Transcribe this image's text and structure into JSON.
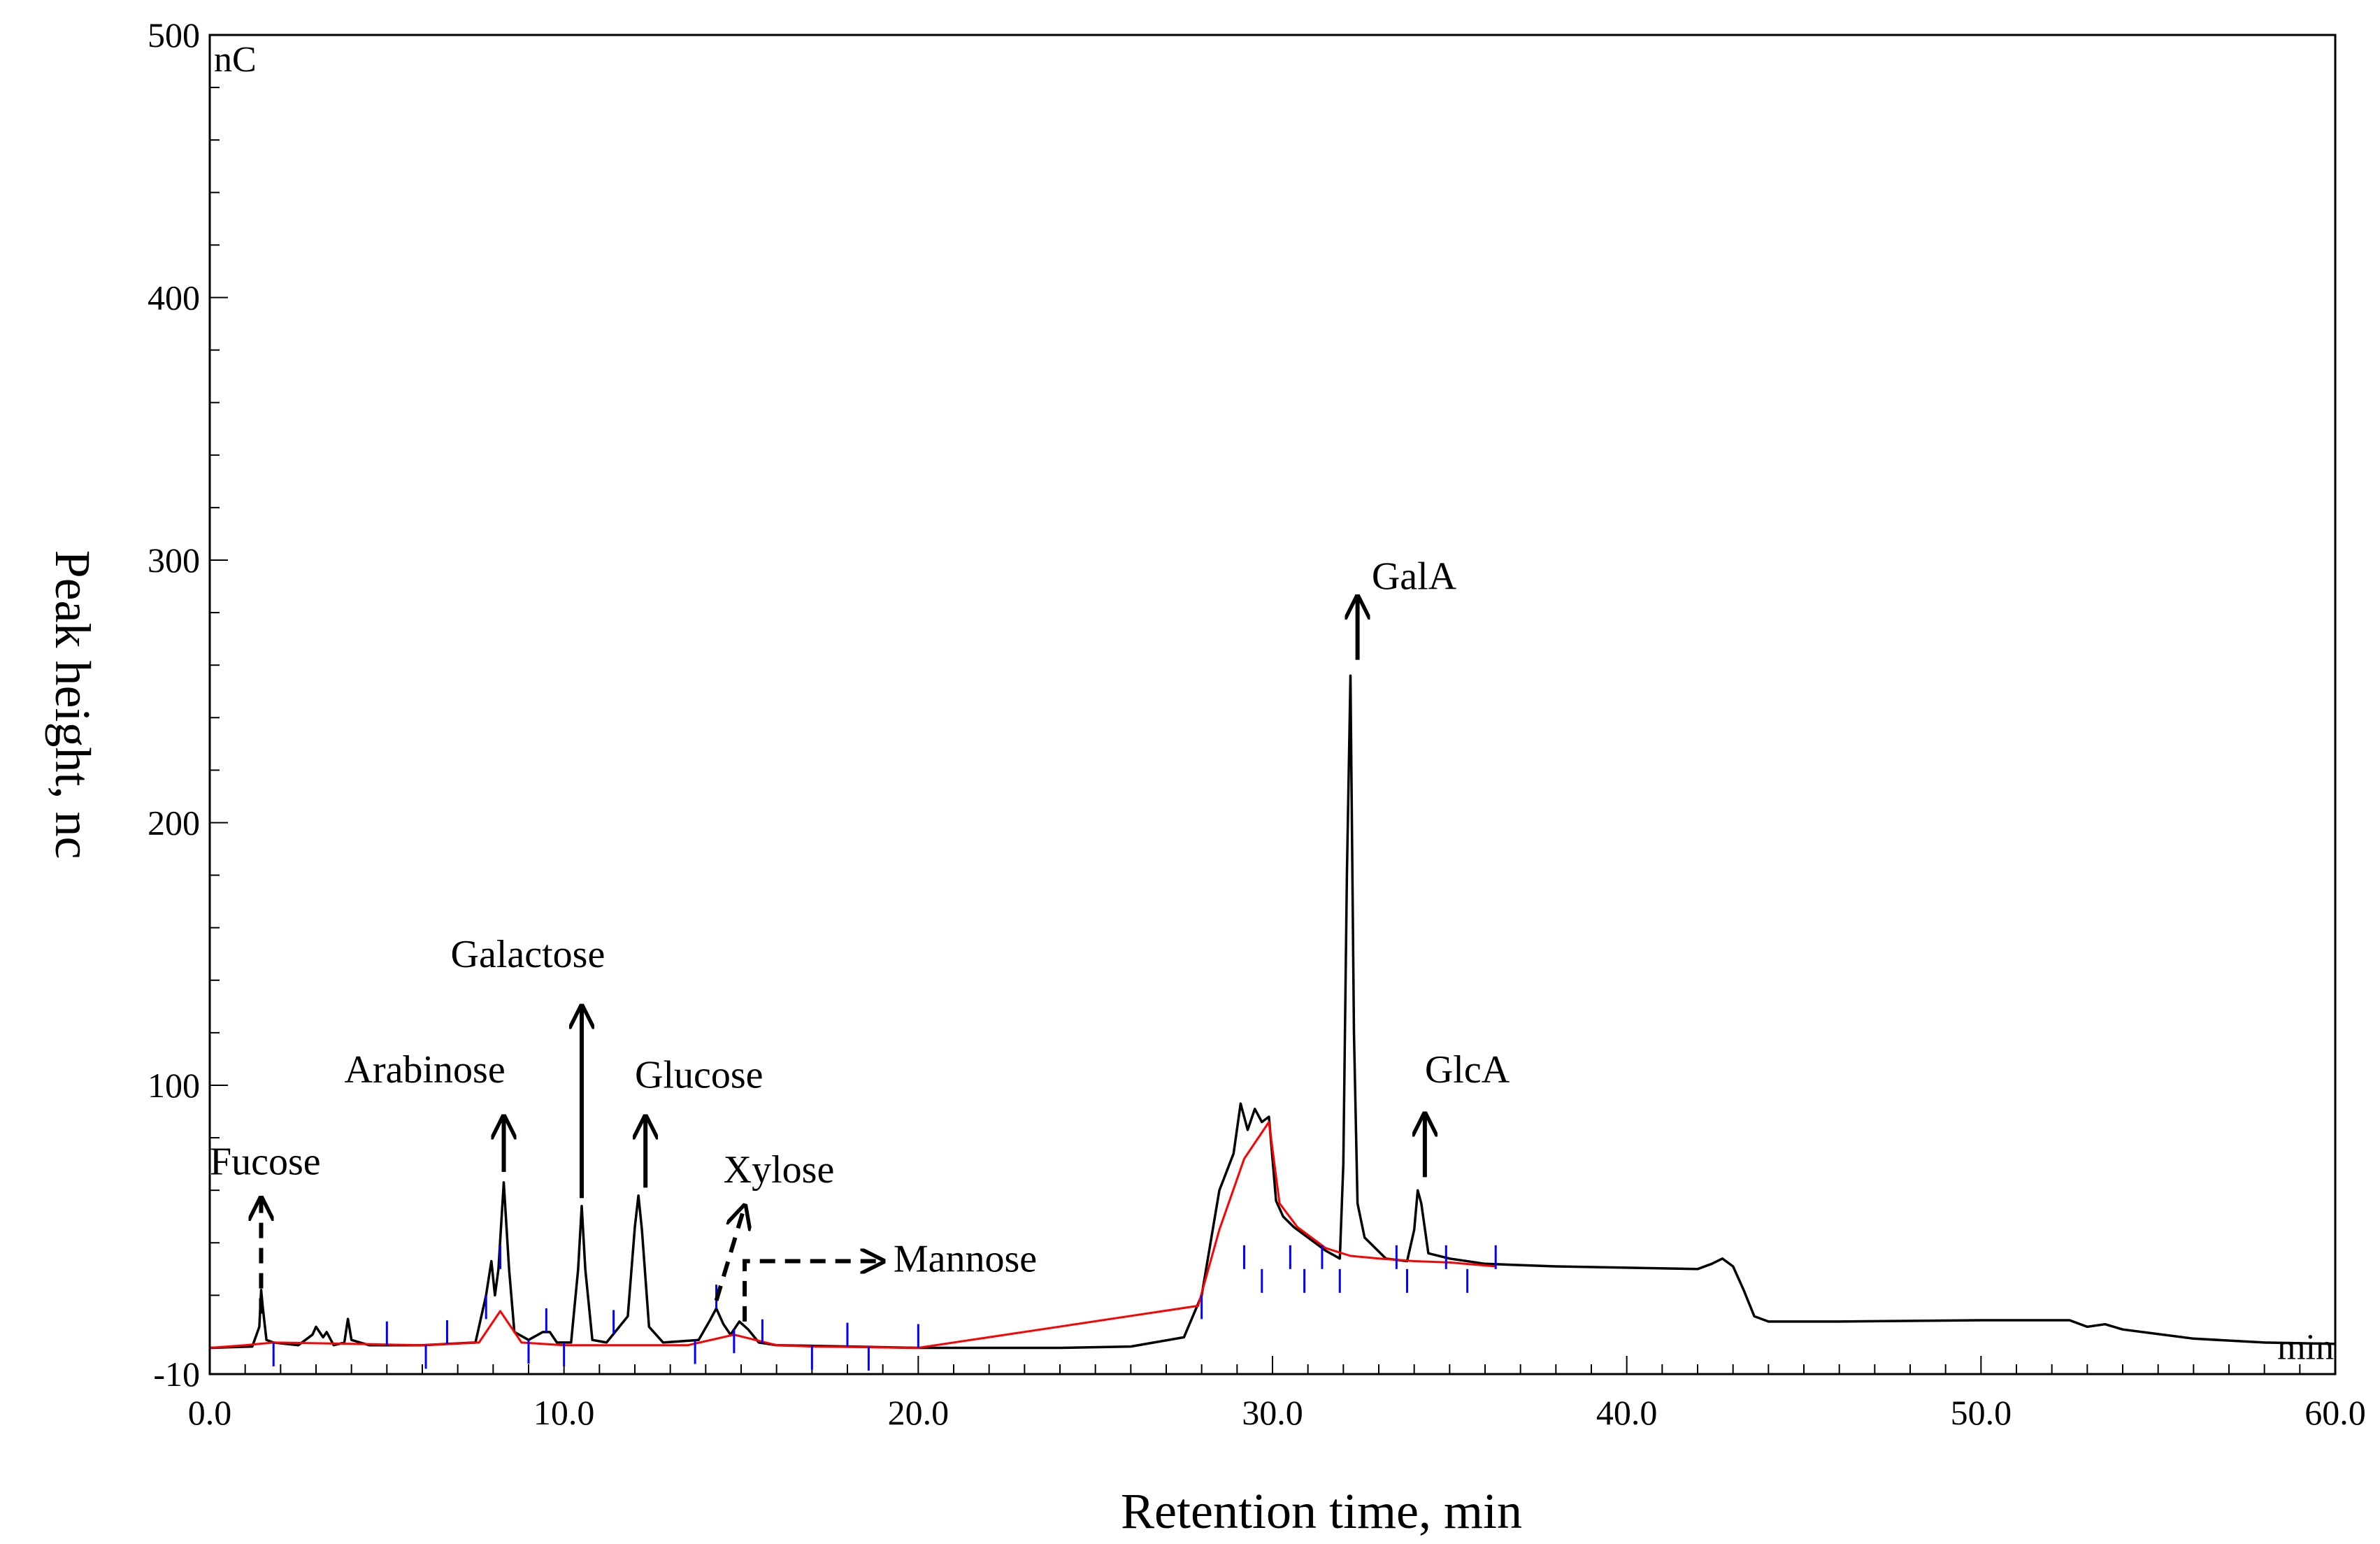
{
  "chart_data": {
    "type": "line",
    "title": "",
    "xlabel": "Retention time, min",
    "ylabel": "Peak height, nc",
    "y_unit": "nC",
    "x_unit": "min",
    "xlim": [
      0,
      60
    ],
    "ylim": [
      -10,
      500
    ],
    "x_ticks": [
      0,
      10,
      20,
      30,
      40,
      50,
      60
    ],
    "x_tick_labels": [
      "0.0",
      "10.0",
      "20.0",
      "30.0",
      "40.0",
      "50.0",
      "60.0"
    ],
    "y_ticks": [
      -10,
      100,
      200,
      300,
      400,
      500
    ],
    "y_tick_labels": [
      "-10",
      "100",
      "200",
      "300",
      "400",
      "500"
    ],
    "grid": false,
    "colors": {
      "trace": "#000000",
      "baseline": "#ff0000",
      "markers": "#0000ff"
    },
    "series": [
      {
        "name": "chromatogram",
        "color": "#000000",
        "points": [
          [
            0,
            0
          ],
          [
            1.2,
            0.5
          ],
          [
            1.4,
            8
          ],
          [
            1.45,
            22
          ],
          [
            1.5,
            15
          ],
          [
            1.6,
            3
          ],
          [
            1.8,
            2
          ],
          [
            2.5,
            1
          ],
          [
            2.9,
            5
          ],
          [
            3.0,
            8
          ],
          [
            3.2,
            4
          ],
          [
            3.3,
            6
          ],
          [
            3.5,
            1
          ],
          [
            3.8,
            2
          ],
          [
            3.9,
            11
          ],
          [
            4.0,
            3
          ],
          [
            4.5,
            1
          ],
          [
            6,
            1
          ],
          [
            7.5,
            2
          ],
          [
            7.8,
            20
          ],
          [
            7.95,
            33
          ],
          [
            8.05,
            20
          ],
          [
            8.15,
            30
          ],
          [
            8.3,
            63
          ],
          [
            8.45,
            30
          ],
          [
            8.6,
            6
          ],
          [
            9,
            3
          ],
          [
            9.4,
            6
          ],
          [
            9.6,
            6
          ],
          [
            9.8,
            2
          ],
          [
            10.2,
            2
          ],
          [
            10.4,
            30
          ],
          [
            10.5,
            54
          ],
          [
            10.6,
            30
          ],
          [
            10.8,
            3
          ],
          [
            11.2,
            2
          ],
          [
            11.8,
            12
          ],
          [
            12.0,
            46
          ],
          [
            12.1,
            58
          ],
          [
            12.2,
            45
          ],
          [
            12.4,
            8
          ],
          [
            12.8,
            2
          ],
          [
            13.8,
            3
          ],
          [
            14.1,
            10
          ],
          [
            14.3,
            15
          ],
          [
            14.5,
            9
          ],
          [
            14.7,
            5
          ],
          [
            14.95,
            10
          ],
          [
            15.2,
            7
          ],
          [
            15.5,
            2
          ],
          [
            16,
            1
          ],
          [
            20,
            0
          ],
          [
            24,
            0
          ],
          [
            26,
            0.5
          ],
          [
            27.5,
            4
          ],
          [
            28,
            20
          ],
          [
            28.5,
            60
          ],
          [
            28.9,
            74
          ],
          [
            29.1,
            93
          ],
          [
            29.3,
            83
          ],
          [
            29.5,
            91
          ],
          [
            29.7,
            86
          ],
          [
            29.9,
            88
          ],
          [
            30.1,
            56
          ],
          [
            30.3,
            50
          ],
          [
            30.6,
            46
          ],
          [
            31,
            42
          ],
          [
            31.5,
            37
          ],
          [
            31.9,
            34
          ],
          [
            32.0,
            70
          ],
          [
            32.1,
            180
          ],
          [
            32.2,
            256
          ],
          [
            32.3,
            120
          ],
          [
            32.4,
            55
          ],
          [
            32.6,
            42
          ],
          [
            33.2,
            34
          ],
          [
            33.8,
            33
          ],
          [
            34.0,
            45
          ],
          [
            34.1,
            60
          ],
          [
            34.2,
            55
          ],
          [
            34.4,
            36
          ],
          [
            35,
            34
          ],
          [
            36,
            32
          ],
          [
            38,
            31
          ],
          [
            40,
            30.5
          ],
          [
            42,
            30
          ],
          [
            42.4,
            32
          ],
          [
            42.7,
            34
          ],
          [
            43,
            31
          ],
          [
            43.3,
            22
          ],
          [
            43.6,
            12
          ],
          [
            44,
            10
          ],
          [
            46,
            10
          ],
          [
            50,
            10.5
          ],
          [
            52.5,
            10.5
          ],
          [
            53,
            8
          ],
          [
            53.5,
            9
          ],
          [
            54,
            7
          ],
          [
            56,
            3.5
          ],
          [
            58,
            2
          ],
          [
            60,
            1.5
          ]
        ]
      },
      {
        "name": "integration baseline",
        "color": "#ff0000",
        "points": [
          [
            0,
            0
          ],
          [
            1,
            1
          ],
          [
            1.8,
            2
          ],
          [
            4,
            1.5
          ],
          [
            6,
            1
          ],
          [
            7.6,
            2
          ],
          [
            8.2,
            14
          ],
          [
            8.8,
            2
          ],
          [
            10,
            1
          ],
          [
            13.5,
            1
          ],
          [
            14.8,
            5
          ],
          [
            16,
            1
          ],
          [
            17,
            0.5
          ],
          [
            20,
            0
          ],
          [
            27.9,
            16
          ],
          [
            28.5,
            45
          ],
          [
            29.2,
            72
          ],
          [
            29.9,
            86
          ],
          [
            30.2,
            55
          ],
          [
            30.7,
            46
          ],
          [
            31.5,
            38
          ],
          [
            32.2,
            35
          ],
          [
            33,
            34
          ],
          [
            34,
            33
          ],
          [
            35,
            32.5
          ],
          [
            36.3,
            31
          ]
        ]
      }
    ],
    "integration_markers_min": [
      0,
      1.8,
      5,
      6.1,
      6.7,
      7.8,
      8.2,
      9.0,
      9.5,
      10.0,
      11.4,
      13.7,
      14.3,
      14.8,
      15.6,
      17,
      18,
      18.6,
      20,
      28,
      29.2,
      29.7,
      30.5,
      30.9,
      31.4,
      31.9,
      33.5,
      33.8,
      34.9,
      35.5,
      36.3
    ],
    "annotations": [
      {
        "label": "Fucose",
        "peak_x": 1.45,
        "style": "dashed"
      },
      {
        "label": "Arabinose",
        "peak_x": 8.3,
        "style": "solid"
      },
      {
        "label": "Galactose",
        "peak_x": 10.5,
        "style": "solid"
      },
      {
        "label": "Glucose",
        "peak_x": 12.1,
        "style": "solid"
      },
      {
        "label": "Xylose",
        "peak_x": 14.3,
        "style": "dashed"
      },
      {
        "label": "Mannose",
        "peak_x": 14.95,
        "style": "dashed"
      },
      {
        "label": "GalA",
        "peak_x": 32.2,
        "style": "solid"
      },
      {
        "label": "GlcA",
        "peak_x": 34.1,
        "style": "solid"
      }
    ]
  }
}
